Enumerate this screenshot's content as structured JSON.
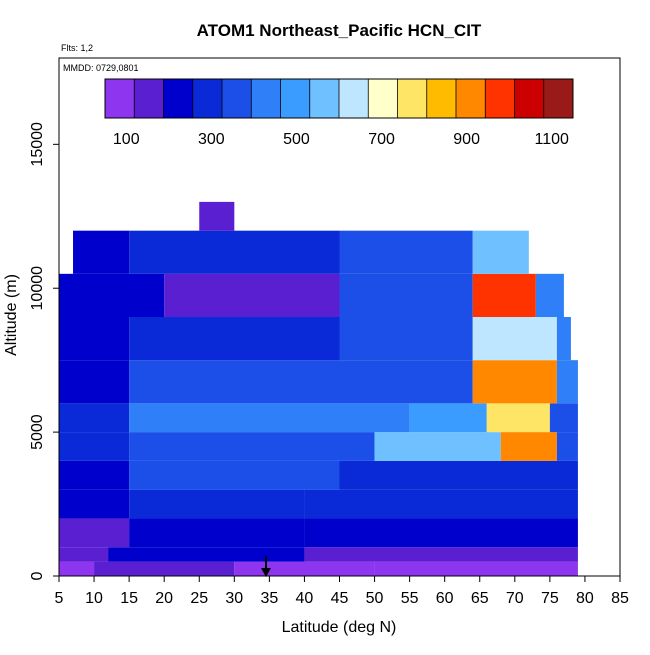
{
  "chart_data": {
    "type": "heatmap",
    "title": "ATOM1 Northeast_Pacific HCN_CIT",
    "flights_label": "Flts: 1,2",
    "dates_label": "MMDD: 0729,0801",
    "xlabel": "Latitude (deg N)",
    "ylabel": "Altitude (m)",
    "xlim": [
      5,
      85
    ],
    "ylim": [
      0,
      18000
    ],
    "x_ticks": [
      "5",
      "10",
      "15",
      "20",
      "25",
      "30",
      "35",
      "40",
      "45",
      "50",
      "55",
      "60",
      "65",
      "70",
      "75",
      "80",
      "85"
    ],
    "y_ticks": [
      "0",
      "5000",
      "10000",
      "15000"
    ],
    "colorbar": {
      "range": [
        50,
        1150
      ],
      "tick_labels": [
        "100",
        "300",
        "500",
        "700",
        "900",
        "1100"
      ],
      "tick_values": [
        100,
        300,
        500,
        700,
        900,
        1100
      ],
      "colors": [
        "#8e35ef",
        "#5a1fd0",
        "#0000cd",
        "#0a2ad8",
        "#1c4fe8",
        "#2f7ff8",
        "#3a9cff",
        "#6ec0ff",
        "#bfe6ff",
        "#ffffcc",
        "#ffe566",
        "#ffbb00",
        "#ff8800",
        "#ff3300",
        "#cc0000",
        "#9a1a1a"
      ]
    },
    "layers": [
      {
        "alt": [
          0,
          500
        ],
        "segments": [
          [
            5,
            10,
            110
          ],
          [
            10,
            30,
            130
          ],
          [
            30,
            50,
            110
          ],
          [
            50,
            79,
            90
          ]
        ]
      },
      {
        "alt": [
          500,
          1000
        ],
        "segments": [
          [
            5,
            12,
            150
          ],
          [
            12,
            40,
            190
          ],
          [
            40,
            79,
            180
          ]
        ]
      },
      {
        "alt": [
          1000,
          2000
        ],
        "segments": [
          [
            5,
            15,
            170
          ],
          [
            15,
            40,
            240
          ],
          [
            40,
            79,
            240
          ]
        ]
      },
      {
        "alt": [
          2000,
          3000
        ],
        "segments": [
          [
            5,
            15,
            200
          ],
          [
            15,
            40,
            300
          ],
          [
            40,
            79,
            270
          ]
        ]
      },
      {
        "alt": [
          3000,
          4000
        ],
        "segments": [
          [
            5,
            15,
            230
          ],
          [
            15,
            45,
            340
          ],
          [
            45,
            79,
            310
          ]
        ]
      },
      {
        "alt": [
          4000,
          5000
        ],
        "segments": [
          [
            5,
            15,
            280
          ],
          [
            15,
            50,
            390
          ],
          [
            50,
            68,
            540
          ],
          [
            68,
            76,
            880
          ],
          [
            76,
            79,
            340
          ]
        ]
      },
      {
        "alt": [
          5000,
          6000
        ],
        "segments": [
          [
            5,
            15,
            260
          ],
          [
            15,
            55,
            430
          ],
          [
            55,
            66,
            500
          ],
          [
            66,
            75,
            780
          ],
          [
            75,
            79,
            360
          ]
        ]
      },
      {
        "alt": [
          6000,
          7500
        ],
        "segments": [
          [
            5,
            15,
            210
          ],
          [
            15,
            45,
            340
          ],
          [
            45,
            64,
            360
          ],
          [
            64,
            76,
            900
          ],
          [
            76,
            79,
            420
          ]
        ]
      },
      {
        "alt": [
          7500,
          9000
        ],
        "segments": [
          [
            5,
            15,
            240
          ],
          [
            15,
            45,
            320
          ],
          [
            45,
            64,
            380
          ],
          [
            64,
            76,
            620
          ],
          [
            76,
            78,
            400
          ]
        ]
      },
      {
        "alt": [
          9000,
          10500
        ],
        "segments": [
          [
            5,
            20,
            220
          ],
          [
            20,
            45,
            150
          ],
          [
            45,
            64,
            360
          ],
          [
            64,
            73,
            950
          ],
          [
            73,
            77,
            420
          ]
        ]
      },
      {
        "alt": [
          10500,
          12000
        ],
        "segments": [
          [
            7,
            15,
            250
          ],
          [
            15,
            45,
            260
          ],
          [
            45,
            64,
            330
          ],
          [
            64,
            72,
            560
          ]
        ]
      },
      {
        "alt": [
          12000,
          13000
        ],
        "segments": [
          [
            25,
            30,
            160
          ]
        ]
      }
    ]
  }
}
